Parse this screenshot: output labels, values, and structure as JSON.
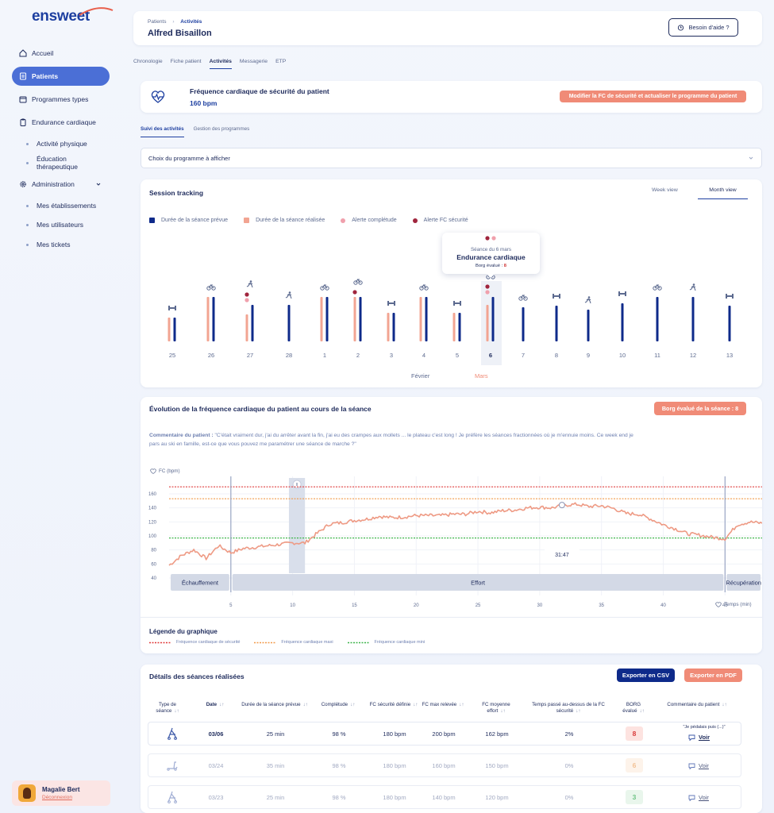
{
  "brand": "ensweet",
  "sidebar": {
    "items": [
      {
        "label": "Accueil",
        "icon": "home-icon"
      },
      {
        "label": "Patients",
        "icon": "patients-icon"
      },
      {
        "label": "Programmes types",
        "icon": "programs-icon"
      },
      {
        "label": "Endurance cardiaque",
        "icon": "clipboard-icon"
      },
      {
        "label": "Activité physique"
      },
      {
        "label": "Éducation thérapeutique"
      },
      {
        "label": "Administration",
        "icon": "settings-icon"
      },
      {
        "label": "Mes établissements"
      },
      {
        "label": "Mes utilisateurs"
      },
      {
        "label": "Mes tickets"
      }
    ],
    "user": {
      "name": "Magalie Bert",
      "logout": "Déconnexion"
    }
  },
  "header": {
    "crumb_root": "Patients",
    "crumb_current": "Activités",
    "patient_name": "Alfred Bisaillon",
    "help_label": "Besoin d'aide ?"
  },
  "tabs": [
    "Chronologie",
    "Fiche patient",
    "Activités",
    "Messagerie",
    "ETP"
  ],
  "fc_safety": {
    "title": "Fréquence cardiaque de sécurité du patient",
    "value": "160 bpm",
    "button": "Modifier la FC de sécurité et actualiser le programme du patient"
  },
  "subtabs": [
    "Suivi des activités",
    "Gestion des programmes"
  ],
  "program_select": {
    "placeholder": "Choix du programme à afficher"
  },
  "session": {
    "title": "Session tracking",
    "week_view": "Week view",
    "month_view": "Month view",
    "legend": [
      "Durée de la séance prévue",
      "Durée de la séance réalisée",
      "Alerte complétude",
      "Alerte FC sécurité"
    ],
    "months": [
      "Février",
      "Mars"
    ],
    "tooltip": {
      "date": "Séance du 6 mars",
      "title": "Endurance cardiaque",
      "borg_label": "Borg évalué :",
      "borg_value": "8"
    },
    "colors": {
      "planned": "#0e2a8a",
      "done": "#f2a492",
      "alert_completion": "#f0a0ac",
      "alert_fc": "#a0253d"
    }
  },
  "chart_data": [
    {
      "type": "bar",
      "title": "Session tracking",
      "categories": [
        "25",
        "26",
        "27",
        "28",
        "1",
        "2",
        "3",
        "4",
        "5",
        "6",
        "7",
        "8",
        "9",
        "10",
        "11",
        "12",
        "13"
      ],
      "activities": [
        "dumbbell",
        "bike",
        "run",
        "run",
        "bike",
        "bike",
        "dumbbell",
        "bike",
        "dumbbell",
        "bike",
        "bike",
        "dumbbell",
        "run",
        "dumbbell",
        "bike",
        "run",
        "dumbbell"
      ],
      "series": [
        {
          "name": "Durée de la séance prévue",
          "values": [
            30,
            56,
            46,
            46,
            56,
            56,
            36,
            56,
            36,
            56,
            43,
            45,
            40,
            48,
            56,
            56,
            45
          ]
        },
        {
          "name": "Durée de la séance réalisée",
          "values": [
            30,
            56,
            34,
            null,
            56,
            56,
            36,
            56,
            36,
            46,
            null,
            null,
            null,
            null,
            null,
            null,
            null
          ]
        }
      ],
      "alert_completion": [
        "27",
        "6"
      ],
      "alert_fc": [
        "27",
        "2",
        "6"
      ],
      "selected": "6"
    },
    {
      "type": "line",
      "title": "Évolution de la fréquence cardiaque du patient au cours de la séance",
      "xlabel": "Temps (min)",
      "ylabel": "FC (bpm)",
      "xticks": [
        5,
        10,
        15,
        20,
        25,
        30,
        35,
        40,
        45
      ],
      "yticks": [
        40,
        60,
        80,
        100,
        120,
        140,
        160
      ],
      "xlim": [
        0,
        48
      ],
      "ylim": [
        40,
        175
      ],
      "x": [
        0,
        1,
        2,
        3,
        4,
        5,
        6,
        7,
        8,
        9,
        10,
        11,
        12,
        13,
        14,
        15,
        16,
        17,
        18,
        19,
        20,
        21,
        22,
        23,
        24,
        25,
        26,
        27,
        28,
        29,
        30,
        31,
        32,
        33,
        34,
        35,
        36,
        37,
        38,
        39,
        40,
        41,
        42,
        43,
        44,
        45,
        46,
        47,
        48
      ],
      "y": [
        58,
        72,
        80,
        68,
        86,
        76,
        82,
        84,
        86,
        88,
        90,
        90,
        104,
        117,
        119,
        122,
        124,
        128,
        126,
        127,
        129,
        129,
        129,
        131,
        131,
        135,
        133,
        136,
        137,
        140,
        141,
        140,
        144,
        145,
        142,
        143,
        139,
        132,
        131,
        124,
        116,
        110,
        103,
        101,
        98,
        96,
        116,
        120,
        118
      ],
      "reference_lines": [
        {
          "name": "Fréquence cardiaque de sécurité",
          "y": 170,
          "color": "#e03c3c"
        },
        {
          "name": "Fréquence cardiaque maxi",
          "y": 153,
          "color": "#f29a4a"
        },
        {
          "name": "Fréquence cardiaque mini",
          "y": 97,
          "color": "#3db44a"
        }
      ],
      "phases": [
        {
          "name": "Échauffement",
          "from": 0,
          "to": 5
        },
        {
          "name": "Effort",
          "from": 5,
          "to": 45
        },
        {
          "name": "Récupération",
          "from": 45,
          "to": 48
        }
      ],
      "cursor_label": "31:47",
      "pause_marker": "II"
    }
  ],
  "hr": {
    "title": "Évolution de la fréquence cardiaque du patient au cours de la séance",
    "borg_button": "Borg évalué de la séance : 8",
    "comment_label": "Commentaire du patient :",
    "comment_text": "\"C'était vraiment dur, j'ai du arrêter avant la fin, j'ai eu des crampes aux mollets ... le plateau c'est long ! Je préfère les séances fractionnées où je m'ennuie moins. Ce week end je pars au ski en famille, est-ce que vous pouvez me paramétrer une séance de marche ?\"",
    "y_axis_label": "FC (bpm)",
    "x_axis_label": "Temps (min)",
    "legend_title": "Légende du graphique",
    "legend": [
      "Fréquence cardiaque de sécurité",
      "Fréquence cardiaque maxi",
      "Fréquence cardiaque mini"
    ]
  },
  "details": {
    "title": "Détails des séances réalisées",
    "export_csv": "Exporter en CSV",
    "export_pdf": "Exporter en PDF",
    "columns": [
      "Type de séance",
      "Date",
      "Durée de la séance prévue",
      "Complétude",
      "FC sécurité définie",
      "FC max relevée",
      "FC moyenne effort",
      "Temps passé au-dessus de la FC sécurité",
      "BORG évalué",
      "Commentaire du patient"
    ],
    "rows": [
      {
        "type": "elliptical-icon",
        "date": "03/06",
        "planned": "25 min",
        "completion": "98 %",
        "fc_safe": "180 bpm",
        "fc_max": "200 bpm",
        "fc_avg": "162 bpm",
        "over": "2%",
        "borg": "8",
        "borg_color": "#d93a3a",
        "borg_bg": "#fde3e0",
        "comment": "\"Je pédalais puis (...)\"",
        "action": "Voir"
      },
      {
        "type": "treadmill-icon",
        "date": "03/24",
        "planned": "35 min",
        "completion": "98 %",
        "fc_safe": "180 bpm",
        "fc_max": "160 bpm",
        "fc_avg": "150 bpm",
        "over": "0%",
        "borg": "6",
        "borg_color": "#f0b27a",
        "borg_bg": "#fdf1e6",
        "comment": "",
        "action": "Voir"
      },
      {
        "type": "elliptical-icon",
        "date": "03/23",
        "planned": "25 min",
        "completion": "98 %",
        "fc_safe": "180 bpm",
        "fc_max": "140 bpm",
        "fc_avg": "120 bpm",
        "over": "0%",
        "borg": "3",
        "borg_color": "#4bb567",
        "borg_bg": "#e4f5e8",
        "comment": "",
        "action": "Voir"
      }
    ]
  }
}
